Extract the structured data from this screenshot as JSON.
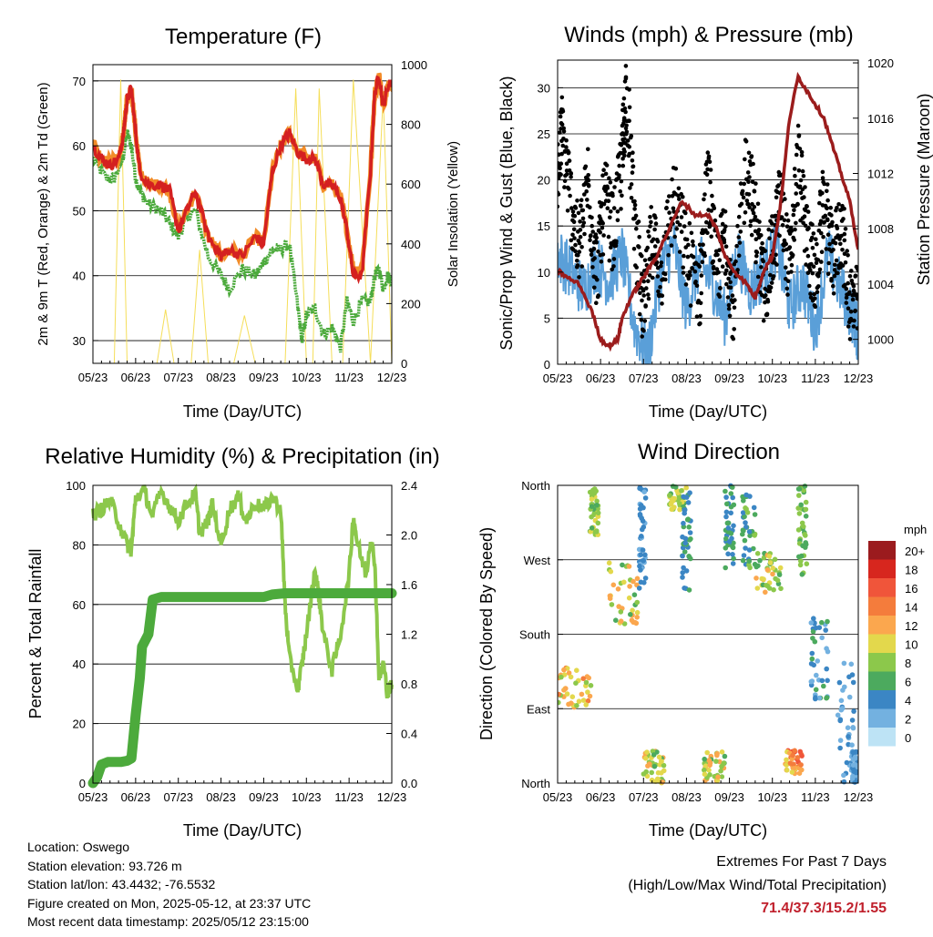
{
  "figure": {
    "location": "Location: Oswego",
    "elevation": "Station elevation: 93.726 m",
    "latlon": "Station lat/lon: 43.4432; -76.5532",
    "created": "Figure created on Mon, 2025-05-12, at 23:37 UTC",
    "recent": "Most recent data timestamp: 2025/05/12 23:15:00",
    "extremes_line1": "Extremes For Past 7 Days",
    "extremes_line2": "(High/Low/Max Wind/Total Precipitation)",
    "extremes_values": "71.4/37.3/15.2/1.55"
  },
  "chart_data": [
    {
      "id": "temperature",
      "type": "line",
      "title": "Temperature (F)",
      "xlabel": "Time (Day/UTC)",
      "ylabel": "2m & 9m T (Red, Orange) & 2m Td (Green)",
      "y2label": "Solar Insolation (Yellow)",
      "x_ticks": [
        "05/23",
        "06/23",
        "07/23",
        "08/23",
        "09/23",
        "10/23",
        "11/23",
        "12/23"
      ],
      "xlim": [
        0,
        7
      ],
      "ylim": [
        26.5,
        72.5
      ],
      "y_ticks": [
        30,
        40,
        50,
        60,
        70
      ],
      "y2lim": [
        0,
        1000
      ],
      "y2_ticks": [
        0,
        200,
        400,
        600,
        800,
        1000
      ],
      "grid": "horizontal",
      "series": [
        {
          "role": "2m T",
          "color": "#d42020",
          "axis": "left",
          "x": [
            0,
            0.2,
            0.4,
            0.6,
            0.7,
            0.75,
            0.8,
            0.9,
            1.0,
            1.1,
            1.3,
            1.6,
            1.8,
            2.0,
            2.2,
            2.4,
            2.7,
            2.9,
            3.0,
            3.2,
            3.5,
            3.8,
            4.0,
            4.2,
            4.4,
            4.6,
            4.8,
            5.0,
            5.2,
            5.4,
            5.6,
            5.8,
            5.95,
            6.1,
            6.3,
            6.5,
            6.6,
            6.7,
            6.8,
            6.9,
            7.0
          ],
          "y": [
            60,
            58,
            57,
            58,
            61,
            64,
            67,
            69,
            62,
            56,
            54,
            54,
            53,
            47,
            50,
            53,
            46,
            44,
            43,
            44,
            43,
            46,
            45,
            56,
            60,
            62,
            59,
            58,
            58,
            54,
            54,
            52,
            47,
            40,
            40,
            56,
            68,
            71,
            66,
            69,
            70
          ]
        },
        {
          "role": "9m T",
          "color": "#f28c28",
          "axis": "left",
          "x": [
            0,
            0.2,
            0.4,
            0.6,
            0.7,
            0.75,
            0.8,
            0.9,
            1.0,
            1.1,
            1.3,
            1.6,
            1.8,
            2.0,
            2.2,
            2.4,
            2.7,
            2.9,
            3.0,
            3.2,
            3.5,
            3.8,
            4.0,
            4.2,
            4.4,
            4.6,
            4.8,
            5.0,
            5.2,
            5.4,
            5.6,
            5.8,
            5.95,
            6.1,
            6.3,
            6.5,
            6.6,
            6.7,
            6.8,
            6.9,
            7.0
          ],
          "y": [
            60.5,
            58,
            57.5,
            58,
            61,
            64,
            67,
            69,
            62,
            56,
            54,
            54,
            53,
            47,
            50,
            53,
            46,
            44,
            43,
            44,
            43,
            46,
            45,
            56,
            60,
            62,
            59,
            58,
            58,
            54,
            54,
            52,
            47,
            41,
            41,
            56,
            68,
            71,
            66,
            69,
            70
          ]
        },
        {
          "role": "2m Td",
          "color": "#4caa3c",
          "axis": "left",
          "x": [
            0,
            0.3,
            0.5,
            0.7,
            0.8,
            0.9,
            1.0,
            1.1,
            1.3,
            1.6,
            1.8,
            2.0,
            2.2,
            2.4,
            2.7,
            3.0,
            3.2,
            3.5,
            3.8,
            4.0,
            4.2,
            4.4,
            4.6,
            4.8,
            4.9,
            5.0,
            5.2,
            5.4,
            5.6,
            5.8,
            5.95,
            6.1,
            6.3,
            6.5,
            6.6,
            6.7,
            6.8,
            6.9,
            7.0
          ],
          "y": [
            58,
            55,
            55,
            58,
            62,
            60,
            55,
            53,
            51,
            50,
            48,
            46,
            49,
            50,
            43,
            40,
            38,
            41,
            40,
            42,
            44,
            44,
            45,
            35,
            30,
            34,
            35,
            31,
            32,
            29,
            36,
            33,
            36,
            36,
            40,
            41,
            38,
            40,
            39
          ]
        },
        {
          "role": "Solar insolation",
          "color": "#f5de5a",
          "axis": "right",
          "x": [
            0.5,
            0.65,
            0.8,
            1.5,
            1.7,
            1.9,
            2.3,
            2.5,
            2.7,
            3.3,
            3.55,
            3.8,
            4.5,
            4.75,
            5.0,
            5.15,
            5.3,
            5.6,
            5.85,
            6.1,
            6.5,
            6.8,
            7.0
          ],
          "y": [
            0,
            950,
            0,
            0,
            180,
            0,
            0,
            380,
            0,
            0,
            160,
            0,
            0,
            920,
            0,
            0,
            920,
            0,
            0,
            950,
            0,
            900,
            0
          ]
        }
      ]
    },
    {
      "id": "winds",
      "type": "line",
      "title": "Winds (mph) & Pressure (mb)",
      "xlabel": "Time (Day/UTC)",
      "ylabel": "Sonic/Prop Wind & Gust (Blue, Black)",
      "y2label": "Station Pressure (Maroon)",
      "x_ticks": [
        "05/23",
        "06/23",
        "07/23",
        "08/23",
        "09/23",
        "10/23",
        "11/23",
        "12/23"
      ],
      "xlim": [
        0,
        7
      ],
      "ylim": [
        0,
        33
      ],
      "y_ticks": [
        0,
        5,
        10,
        15,
        20,
        25,
        30
      ],
      "y2lim": [
        998.2,
        1020.2
      ],
      "y2_ticks": [
        1000,
        1004,
        1008,
        1012,
        1016,
        1020
      ],
      "grid": "horizontal",
      "series": [
        {
          "role": "Wind",
          "color": "#5a9fd8",
          "axis": "left",
          "x": [
            0,
            0.3,
            0.6,
            0.9,
            1.2,
            1.5,
            1.8,
            2.1,
            2.4,
            2.7,
            3.0,
            3.3,
            3.6,
            3.9,
            4.2,
            4.5,
            4.8,
            5.1,
            5.4,
            5.7,
            6.0,
            6.3,
            6.6,
            6.9,
            7.0
          ],
          "y": [
            12,
            10,
            8,
            11,
            9,
            12,
            4,
            1,
            10,
            13,
            6,
            11,
            9,
            5,
            12,
            8,
            10,
            13,
            6,
            9,
            4,
            12,
            8,
            5,
            3
          ]
        },
        {
          "role": "Gust",
          "color": "#000000",
          "axis": "left",
          "x": [
            0,
            0.1,
            0.3,
            0.5,
            0.7,
            0.9,
            1.1,
            1.3,
            1.5,
            1.6,
            1.8,
            2.0,
            2.2,
            2.4,
            2.7,
            3.0,
            3.3,
            3.5,
            3.7,
            3.9,
            4.1,
            4.4,
            4.6,
            4.8,
            5.0,
            5.2,
            5.4,
            5.6,
            5.8,
            6.0,
            6.2,
            6.4,
            6.6,
            6.8,
            7.0
          ],
          "y": [
            20,
            25,
            18,
            12,
            20,
            10,
            18,
            14,
            22,
            30,
            15,
            5,
            14,
            10,
            18,
            12,
            8,
            20,
            10,
            14,
            6,
            22,
            16,
            8,
            12,
            18,
            10,
            22,
            14,
            9,
            18,
            11,
            15,
            7,
            6
          ]
        },
        {
          "role": "Pressure",
          "color": "#9b1c1c",
          "axis": "right",
          "x": [
            0,
            0.2,
            0.5,
            0.8,
            1.0,
            1.2,
            1.4,
            1.5,
            1.7,
            1.9,
            2.1,
            2.3,
            2.6,
            2.9,
            3.2,
            3.5,
            3.7,
            3.9,
            4.1,
            4.4,
            4.6,
            4.8,
            5.0,
            5.2,
            5.4,
            5.6,
            5.8,
            6.0,
            6.2,
            6.4,
            6.6,
            6.8,
            7.0
          ],
          "y": [
            1005,
            1004.5,
            1004,
            1002,
            1000,
            999.5,
            1000,
            1001.5,
            1003,
            1004,
            1005,
            1006,
            1008,
            1010,
            1009,
            1009,
            1008,
            1006,
            1005,
            1004,
            1003,
            1005,
            1006,
            1010,
            1016,
            1019,
            1018,
            1017,
            1016,
            1014,
            1012,
            1010,
            1006.5
          ]
        }
      ]
    },
    {
      "id": "humidity",
      "type": "line",
      "title": "Relative Humidity (%) & Precipitation (in)",
      "xlabel": "Time (Day/UTC)",
      "ylabel": "Percent & Total Rainfall",
      "x_ticks": [
        "05/23",
        "06/23",
        "07/23",
        "08/23",
        "09/23",
        "10/23",
        "11/23",
        "12/23"
      ],
      "xlim": [
        0,
        7
      ],
      "ylim": [
        0,
        100
      ],
      "y_ticks": [
        0,
        20,
        40,
        60,
        80,
        100
      ],
      "y2lim": [
        0,
        2.4
      ],
      "y2_ticks": [
        "0.0",
        "0.4",
        "0.8",
        "1.2",
        "1.6",
        "2.0",
        "2.4"
      ],
      "grid": "horizontal",
      "series": [
        {
          "role": "Relative humidity",
          "color": "#8cc84b",
          "axis": "left",
          "x": [
            0,
            0.2,
            0.4,
            0.6,
            0.8,
            0.9,
            1.0,
            1.2,
            1.4,
            1.6,
            1.8,
            2.0,
            2.2,
            2.4,
            2.5,
            2.7,
            2.8,
            3.0,
            3.2,
            3.4,
            3.6,
            3.8,
            4.0,
            4.2,
            4.4,
            4.5,
            4.6,
            4.8,
            4.9,
            5.0,
            5.2,
            5.3,
            5.4,
            5.6,
            5.8,
            6.0,
            6.1,
            6.2,
            6.4,
            6.5,
            6.6,
            6.7,
            6.8,
            6.9,
            7.0
          ],
          "y": [
            90,
            92,
            95,
            88,
            80,
            78,
            96,
            98,
            90,
            98,
            93,
            88,
            94,
            97,
            84,
            88,
            94,
            80,
            92,
            96,
            88,
            94,
            92,
            96,
            92,
            60,
            42,
            32,
            40,
            50,
            72,
            62,
            50,
            38,
            50,
            70,
            90,
            80,
            70,
            82,
            75,
            35,
            40,
            30,
            33
          ]
        },
        {
          "role": "Total precipitation",
          "color": "#4caa3c",
          "axis": "right",
          "x": [
            0,
            0.1,
            0.2,
            0.35,
            0.5,
            0.65,
            0.8,
            0.9,
            1.0,
            1.1,
            1.15,
            1.3,
            1.4,
            1.6,
            2.0,
            2.5,
            3.0,
            3.5,
            4.0,
            4.2,
            4.5,
            5.0,
            6.0,
            7.0
          ],
          "y": [
            0,
            0.05,
            0.15,
            0.17,
            0.17,
            0.17,
            0.18,
            0.2,
            0.55,
            0.85,
            1.1,
            1.2,
            1.48,
            1.5,
            1.5,
            1.5,
            1.5,
            1.5,
            1.5,
            1.52,
            1.53,
            1.53,
            1.53,
            1.53
          ]
        }
      ]
    },
    {
      "id": "direction",
      "type": "scatter",
      "title": "Wind Direction",
      "xlabel": "Time (Day/UTC)",
      "ylabel": "Direction (Colored By Speed)",
      "x_ticks": [
        "05/23",
        "06/23",
        "07/23",
        "08/23",
        "09/23",
        "10/23",
        "11/23",
        "12/23"
      ],
      "xlim": [
        0,
        7
      ],
      "y_ticks": [
        "North",
        "East",
        "South",
        "West",
        "North"
      ],
      "ylim": [
        0,
        360
      ],
      "grid": "horizontal",
      "legend_title": "mph",
      "legend_labels": [
        "20+",
        "18",
        "16",
        "14",
        "12",
        "10",
        "8",
        "6",
        "4",
        "2",
        "0"
      ],
      "legend_colors": [
        "#9b1b1e",
        "#d7261e",
        "#f0553a",
        "#f47c3c",
        "#fba74e",
        "#e3d84c",
        "#8cc84b",
        "#4caa5e",
        "#3b86c4",
        "#73b1e0",
        "#bde3f5"
      ],
      "legend_position": "right",
      "clusters": [
        {
          "x": [
            0.0,
            0.8
          ],
          "y": [
            90,
            140
          ],
          "speed": [
            8,
            14
          ]
        },
        {
          "x": [
            0.75,
            0.95
          ],
          "y": [
            300,
            360
          ],
          "speed": [
            6,
            10
          ]
        },
        {
          "x": [
            1.2,
            1.9
          ],
          "y": [
            190,
            270
          ],
          "speed": [
            6,
            13
          ]
        },
        {
          "x": [
            1.9,
            2.05
          ],
          "y": [
            230,
            360
          ],
          "speed": [
            2,
            5
          ]
        },
        {
          "x": [
            2.0,
            2.5
          ],
          "y": [
            0,
            40
          ],
          "speed": [
            6,
            12
          ]
        },
        {
          "x": [
            2.6,
            3.0
          ],
          "y": [
            330,
            360
          ],
          "speed": [
            6,
            11
          ]
        },
        {
          "x": [
            2.9,
            3.1
          ],
          "y": [
            230,
            360
          ],
          "speed": [
            3,
            6
          ]
        },
        {
          "x": [
            3.4,
            3.9
          ],
          "y": [
            0,
            40
          ],
          "speed": [
            6,
            13
          ]
        },
        {
          "x": [
            3.9,
            4.1
          ],
          "y": [
            260,
            360
          ],
          "speed": [
            3,
            7
          ]
        },
        {
          "x": [
            4.3,
            4.6
          ],
          "y": [
            260,
            350
          ],
          "speed": [
            4,
            8
          ]
        },
        {
          "x": [
            4.6,
            5.2
          ],
          "y": [
            230,
            280
          ],
          "speed": [
            6,
            12
          ]
        },
        {
          "x": [
            5.3,
            5.7
          ],
          "y": [
            10,
            40
          ],
          "speed": [
            10,
            16
          ]
        },
        {
          "x": [
            5.6,
            5.8
          ],
          "y": [
            250,
            360
          ],
          "speed": [
            5,
            9
          ]
        },
        {
          "x": [
            5.9,
            6.3
          ],
          "y": [
            100,
            200
          ],
          "speed": [
            2,
            6
          ]
        },
        {
          "x": [
            6.5,
            6.9
          ],
          "y": [
            0,
            150
          ],
          "speed": [
            2,
            4
          ]
        },
        {
          "x": [
            6.85,
            7.0
          ],
          "y": [
            0,
            40
          ],
          "speed": [
            2,
            4
          ]
        }
      ]
    }
  ]
}
